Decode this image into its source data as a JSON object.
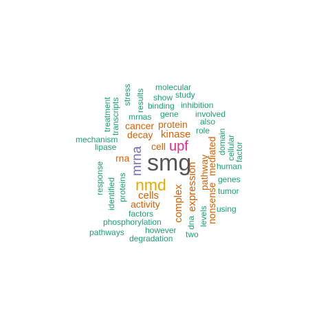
{
  "colors": {
    "teal": "#1b9e77",
    "orange": "#d95f02",
    "purple": "#7570b3",
    "magenta": "#e7298a",
    "gold": "#e6ab02",
    "gray": "#555555"
  },
  "words": {
    "smg": "smg",
    "nmd": "nmd",
    "upf": "upf",
    "mrna": "mrna",
    "kinase": "kinase",
    "complex": "complex",
    "expression": "expression",
    "nonsense": "nonsense",
    "mediated": "mediated",
    "decay": "decay",
    "cells": "cells",
    "activity": "activity",
    "protein": "protein",
    "cancer": "cancer",
    "cell": "cell",
    "rna": "rna",
    "pathway": "pathway",
    "molecular": "molecular",
    "study": "study",
    "show": "show",
    "results": "results",
    "stress": "stress",
    "binding": "binding",
    "inhibition": "inhibition",
    "gene": "gene",
    "involved": "involved",
    "mrnas": "mrnas",
    "also": "also",
    "role": "role",
    "domain": "domain",
    "cellular": "cellular",
    "factor": "factor",
    "human": "human",
    "genes": "genes",
    "tumor": "tumor",
    "using": "using",
    "levels": "levels",
    "dna": "dna",
    "two": "two",
    "however": "however",
    "degradation": "degradation",
    "pathways": "pathways",
    "phosphorylation": "phosphorylation",
    "factors": "factors",
    "proteins": "proteins",
    "identified": "identified",
    "response": "response",
    "lipase": "lipase",
    "mechanism": "mechanism",
    "treatment": "treatment",
    "transcripts": "transcripts"
  }
}
